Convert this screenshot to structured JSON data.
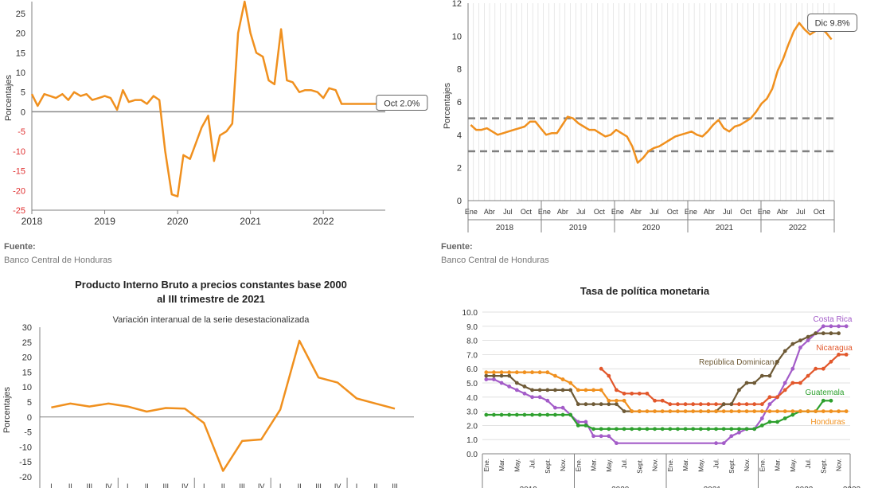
{
  "colors": {
    "primary": "#F0901E",
    "axis": "#808080",
    "grid": "#d9d9d9",
    "band": "#7f7f7f",
    "red_tick": "#e03030"
  },
  "source": {
    "label": "Fuente:",
    "value": "Banco Central de Honduras"
  },
  "chart_data": [
    {
      "id": "c1",
      "type": "line",
      "title": "",
      "ylabel": "Porcentajes",
      "ylim": [
        -25,
        28
      ],
      "yticks": [
        25,
        20,
        15,
        10,
        5,
        0,
        -5,
        -10,
        -15,
        -20,
        -25
      ],
      "xlim": [
        2018,
        2022.85
      ],
      "xticks": [
        2018,
        2019,
        2020,
        2021,
        2022
      ],
      "x": [
        2018.0,
        2018.08,
        2018.17,
        2018.25,
        2018.33,
        2018.42,
        2018.5,
        2018.58,
        2018.67,
        2018.75,
        2018.83,
        2018.92,
        2019.0,
        2019.08,
        2019.17,
        2019.25,
        2019.33,
        2019.42,
        2019.5,
        2019.58,
        2019.67,
        2019.75,
        2019.83,
        2019.92,
        2020.0,
        2020.08,
        2020.17,
        2020.25,
        2020.33,
        2020.42,
        2020.5,
        2020.58,
        2020.67,
        2020.75,
        2020.83,
        2020.92,
        2021.0,
        2021.08,
        2021.17,
        2021.25,
        2021.33,
        2021.42,
        2021.5,
        2021.58,
        2021.67,
        2021.75,
        2021.83,
        2021.92,
        2022.0,
        2022.08,
        2022.17,
        2022.25,
        2022.33,
        2022.42,
        2022.5,
        2022.58,
        2022.67,
        2022.75
      ],
      "y": [
        4.5,
        1.5,
        4.5,
        4.0,
        3.5,
        4.5,
        3.0,
        5.0,
        4.0,
        4.5,
        3.0,
        3.5,
        4.0,
        3.5,
        0.5,
        5.5,
        2.5,
        3.0,
        3.0,
        2.0,
        4.0,
        3.0,
        -10.0,
        -21.0,
        -21.5,
        -11.0,
        -12.0,
        -8.0,
        -4.0,
        -1.0,
        -12.5,
        -6.0,
        -5.0,
        -3.0,
        20.0,
        28.0,
        20.0,
        15.0,
        14.0,
        8.0,
        7.0,
        21.0,
        8.0,
        7.5,
        5.0,
        5.5,
        5.5,
        5.0,
        3.5,
        6.0,
        5.5,
        2.0,
        2.0,
        2.0,
        2.0,
        2.0,
        2.0,
        2.0
      ],
      "annotation": "Oct 2.0%"
    },
    {
      "id": "c2",
      "type": "line",
      "title": "",
      "ylabel": "Porcentajes",
      "ylim": [
        0,
        12
      ],
      "yticks": [
        0,
        2,
        4,
        6,
        8,
        10,
        12
      ],
      "month_labels": [
        "Ene",
        "Abr",
        "Jul",
        "Oct"
      ],
      "year_labels": [
        "2018",
        "2019",
        "2020",
        "2021",
        "2022"
      ],
      "band": [
        3,
        5
      ],
      "values": [
        4.6,
        4.3,
        4.3,
        4.4,
        4.2,
        4.0,
        4.1,
        4.2,
        4.3,
        4.4,
        4.5,
        4.8,
        4.8,
        4.4,
        4.0,
        4.1,
        4.1,
        4.6,
        5.1,
        5.0,
        4.7,
        4.5,
        4.3,
        4.3,
        4.1,
        3.9,
        4.0,
        4.3,
        4.1,
        3.9,
        3.3,
        2.3,
        2.6,
        3.0,
        3.2,
        3.3,
        3.5,
        3.7,
        3.9,
        4.0,
        4.1,
        4.2,
        4.0,
        3.9,
        4.2,
        4.6,
        4.9,
        4.4,
        4.2,
        4.5,
        4.6,
        4.8,
        5.0,
        5.4,
        5.9,
        6.2,
        6.8,
        7.9,
        8.6,
        9.5,
        10.3,
        10.8,
        10.4,
        10.1,
        10.3,
        10.5,
        10.2,
        9.8
      ],
      "annotation": "Dic 9.8%"
    },
    {
      "id": "c3",
      "type": "line",
      "title": "Producto Interno Bruto a precios constantes base 2000",
      "title_line2": "al III trimestre de 2021",
      "subtitle": "Variación interanual de la serie desestacionalizada",
      "ylabel": "Porcentajes",
      "ylim": [
        -20,
        30
      ],
      "yticks": [
        30,
        25,
        20,
        15,
        10,
        5,
        0,
        -5,
        -10,
        -15,
        -20
      ],
      "quarter_labels": [
        "I",
        "II",
        "III",
        "IV"
      ],
      "values": [
        3.2,
        4.5,
        3.5,
        4.5,
        3.5,
        1.8,
        3.0,
        2.8,
        -2.0,
        -18.0,
        -8.0,
        -7.5,
        2.5,
        25.5,
        13.2,
        11.5,
        6.2,
        4.5,
        2.8
      ]
    },
    {
      "id": "c4",
      "type": "line",
      "title": "Tasa de política monetaria",
      "ylim": [
        0,
        10
      ],
      "yticks": [
        "0.0",
        "1.0",
        "2.0",
        "3.0",
        "4.0",
        "5.0",
        "6.0",
        "7.0",
        "8.0",
        "9.0",
        "10.0"
      ],
      "x_month_labels": [
        "Ene.",
        "Mar.",
        "May.",
        "Jul.",
        "Sept.",
        "Nov."
      ],
      "x_year_labels": [
        "2019",
        "2020",
        "2021",
        "2022",
        "2023"
      ],
      "series": [
        {
          "name": "Costa Rica",
          "color": "#A35CC8",
          "points": [
            [
              0,
              5.25
            ],
            [
              1,
              5.25
            ],
            [
              2,
              5.0
            ],
            [
              3,
              4.75
            ],
            [
              4,
              4.5
            ],
            [
              5,
              4.25
            ],
            [
              6,
              4.0
            ],
            [
              7,
              4.0
            ],
            [
              8,
              3.75
            ],
            [
              9,
              3.25
            ],
            [
              10,
              3.25
            ],
            [
              11,
              2.75
            ],
            [
              12,
              2.25
            ],
            [
              13,
              2.25
            ],
            [
              14,
              1.25
            ],
            [
              15,
              1.25
            ],
            [
              16,
              1.25
            ],
            [
              17,
              0.75
            ],
            [
              30,
              0.75
            ],
            [
              31,
              0.75
            ],
            [
              32,
              1.25
            ],
            [
              33,
              1.5
            ],
            [
              34,
              1.75
            ],
            [
              35,
              1.75
            ],
            [
              36,
              2.5
            ],
            [
              37,
              3.5
            ],
            [
              38,
              4.0
            ],
            [
              39,
              5.0
            ],
            [
              40,
              6.0
            ],
            [
              41,
              7.5
            ],
            [
              42,
              8.0
            ],
            [
              43,
              8.5
            ],
            [
              44,
              9.0
            ],
            [
              45,
              9.0
            ],
            [
              46,
              9.0
            ],
            [
              47,
              9.0
            ]
          ]
        },
        {
          "name": "Nicaragua",
          "color": "#E2572B",
          "points": [
            [
              15,
              6.0
            ],
            [
              16,
              5.5
            ],
            [
              17,
              4.5
            ],
            [
              18,
              4.25
            ],
            [
              19,
              4.25
            ],
            [
              20,
              4.25
            ],
            [
              21,
              4.25
            ],
            [
              22,
              3.75
            ],
            [
              23,
              3.75
            ],
            [
              24,
              3.5
            ],
            [
              25,
              3.5
            ],
            [
              26,
              3.5
            ],
            [
              27,
              3.5
            ],
            [
              28,
              3.5
            ],
            [
              29,
              3.5
            ],
            [
              30,
              3.5
            ],
            [
              31,
              3.5
            ],
            [
              32,
              3.5
            ],
            [
              33,
              3.5
            ],
            [
              34,
              3.5
            ],
            [
              35,
              3.5
            ],
            [
              36,
              3.5
            ],
            [
              37,
              4.0
            ],
            [
              38,
              4.0
            ],
            [
              39,
              4.5
            ],
            [
              40,
              5.0
            ],
            [
              41,
              5.0
            ],
            [
              42,
              5.5
            ],
            [
              43,
              6.0
            ],
            [
              44,
              6.0
            ],
            [
              45,
              6.5
            ],
            [
              46,
              7.0
            ],
            [
              47,
              7.0
            ]
          ]
        },
        {
          "name": "República Dominicana",
          "color": "#6E5A36",
          "points": [
            [
              0,
              5.5
            ],
            [
              1,
              5.5
            ],
            [
              2,
              5.5
            ],
            [
              3,
              5.5
            ],
            [
              4,
              5.0
            ],
            [
              5,
              4.75
            ],
            [
              6,
              4.5
            ],
            [
              7,
              4.5
            ],
            [
              8,
              4.5
            ],
            [
              9,
              4.5
            ],
            [
              10,
              4.5
            ],
            [
              11,
              4.5
            ],
            [
              12,
              3.5
            ],
            [
              13,
              3.5
            ],
            [
              14,
              3.5
            ],
            [
              15,
              3.5
            ],
            [
              16,
              3.5
            ],
            [
              17,
              3.5
            ],
            [
              18,
              3.0
            ],
            [
              19,
              3.0
            ],
            [
              20,
              3.0
            ],
            [
              29,
              3.0
            ],
            [
              30,
              3.0
            ],
            [
              31,
              3.5
            ],
            [
              32,
              3.5
            ],
            [
              33,
              4.5
            ],
            [
              34,
              5.0
            ],
            [
              35,
              5.0
            ],
            [
              36,
              5.5
            ],
            [
              37,
              5.5
            ],
            [
              38,
              6.5
            ],
            [
              39,
              7.25
            ],
            [
              40,
              7.75
            ],
            [
              41,
              8.0
            ],
            [
              42,
              8.25
            ],
            [
              43,
              8.5
            ],
            [
              44,
              8.5
            ],
            [
              45,
              8.5
            ],
            [
              46,
              8.5
            ]
          ]
        },
        {
          "name": "Guatemala",
          "color": "#2EA02E",
          "points": [
            [
              0,
              2.75
            ],
            [
              1,
              2.75
            ],
            [
              2,
              2.75
            ],
            [
              3,
              2.75
            ],
            [
              4,
              2.75
            ],
            [
              5,
              2.75
            ],
            [
              6,
              2.75
            ],
            [
              7,
              2.75
            ],
            [
              8,
              2.75
            ],
            [
              9,
              2.75
            ],
            [
              10,
              2.75
            ],
            [
              11,
              2.75
            ],
            [
              12,
              2.0
            ],
            [
              13,
              2.0
            ],
            [
              14,
              1.75
            ],
            [
              15,
              1.75
            ],
            [
              16,
              1.75
            ],
            [
              17,
              1.75
            ],
            [
              18,
              1.75
            ],
            [
              19,
              1.75
            ],
            [
              20,
              1.75
            ],
            [
              21,
              1.75
            ],
            [
              22,
              1.75
            ],
            [
              23,
              1.75
            ],
            [
              24,
              1.75
            ],
            [
              25,
              1.75
            ],
            [
              26,
              1.75
            ],
            [
              27,
              1.75
            ],
            [
              28,
              1.75
            ],
            [
              29,
              1.75
            ],
            [
              30,
              1.75
            ],
            [
              31,
              1.75
            ],
            [
              32,
              1.75
            ],
            [
              33,
              1.75
            ],
            [
              34,
              1.75
            ],
            [
              35,
              1.75
            ],
            [
              36,
              2.0
            ],
            [
              37,
              2.25
            ],
            [
              38,
              2.25
            ],
            [
              39,
              2.5
            ],
            [
              40,
              2.75
            ],
            [
              41,
              3.0
            ],
            [
              42,
              3.0
            ],
            [
              43,
              3.0
            ],
            [
              44,
              3.75
            ],
            [
              45,
              3.75
            ]
          ]
        },
        {
          "name": "Honduras",
          "color": "#F0901E",
          "points": [
            [
              0,
              5.75
            ],
            [
              1,
              5.75
            ],
            [
              2,
              5.75
            ],
            [
              3,
              5.75
            ],
            [
              4,
              5.75
            ],
            [
              5,
              5.75
            ],
            [
              6,
              5.75
            ],
            [
              7,
              5.75
            ],
            [
              8,
              5.75
            ],
            [
              9,
              5.5
            ],
            [
              10,
              5.25
            ],
            [
              11,
              5.0
            ],
            [
              12,
              4.5
            ],
            [
              13,
              4.5
            ],
            [
              14,
              4.5
            ],
            [
              15,
              4.5
            ],
            [
              16,
              3.75
            ],
            [
              17,
              3.75
            ],
            [
              18,
              3.75
            ],
            [
              19,
              3.0
            ],
            [
              20,
              3.0
            ],
            [
              21,
              3.0
            ],
            [
              22,
              3.0
            ],
            [
              23,
              3.0
            ],
            [
              24,
              3.0
            ],
            [
              25,
              3.0
            ],
            [
              26,
              3.0
            ],
            [
              27,
              3.0
            ],
            [
              28,
              3.0
            ],
            [
              29,
              3.0
            ],
            [
              30,
              3.0
            ],
            [
              31,
              3.0
            ],
            [
              32,
              3.0
            ],
            [
              33,
              3.0
            ],
            [
              34,
              3.0
            ],
            [
              35,
              3.0
            ],
            [
              36,
              3.0
            ],
            [
              37,
              3.0
            ],
            [
              38,
              3.0
            ],
            [
              39,
              3.0
            ],
            [
              40,
              3.0
            ],
            [
              41,
              3.0
            ],
            [
              42,
              3.0
            ],
            [
              43,
              3.0
            ],
            [
              44,
              3.0
            ],
            [
              45,
              3.0
            ],
            [
              46,
              3.0
            ],
            [
              47,
              3.0
            ]
          ]
        }
      ]
    }
  ]
}
